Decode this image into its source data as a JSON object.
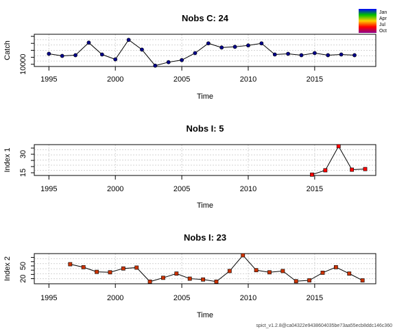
{
  "footer": "spict_v1.2.8@ca04322e9438604035be73aa55ecb8ddc146c360",
  "legend": {
    "labels": [
      "Jan",
      "Apr",
      "Jul",
      "Oct"
    ],
    "colors": [
      "#0000ff",
      "#00c000",
      "#ffd000",
      "#ff0000",
      "#8b008b"
    ]
  },
  "chart_data": [
    {
      "type": "line",
      "title": "Nobs C: 24",
      "xlabel": "Time",
      "ylabel": "Catch",
      "xlim": [
        1993.9,
        2019.6
      ],
      "ylim": [
        8400,
        31500
      ],
      "xticks": [
        "1995",
        "2000",
        "2005",
        "2010",
        "2015"
      ],
      "yticks": [
        "10000"
      ],
      "grid": true,
      "point_color": "#00008b",
      "series": [
        {
          "x": [
            1995.0,
            1996.0,
            1997.0,
            1998.0,
            1999.0,
            2000.0,
            2001.0,
            2002.0,
            2003.0,
            2004.0,
            2005.0,
            2006.0,
            2007.0,
            2008.0,
            2009.0,
            2010.0,
            2011.0,
            2012.0,
            2013.0,
            2014.0,
            2015.0,
            2016.0,
            2017.0,
            2018.0
          ],
          "y": [
            17500,
            16000,
            16500,
            25500,
            17000,
            13500,
            27500,
            20500,
            9000,
            11500,
            13000,
            18000,
            25000,
            22000,
            22500,
            23500,
            25000,
            17000,
            17500,
            16500,
            18000,
            16500,
            17000,
            16500
          ]
        }
      ]
    },
    {
      "type": "line",
      "title": "Nobs I: 5",
      "xlabel": "Time",
      "ylabel": "Index 1",
      "xlim": [
        1993.9,
        2019.6
      ],
      "ylim": [
        12.8,
        37.8
      ],
      "xticks": [
        "1995",
        "2000",
        "2005",
        "2010",
        "2015"
      ],
      "yticks": [
        "15",
        "30"
      ],
      "grid": true,
      "point_color": "#ff0000",
      "series": [
        {
          "x": [
            2014.8,
            2015.8,
            2016.8,
            2017.8,
            2018.8
          ],
          "y": [
            13.5,
            17.0,
            36.5,
            17.5,
            18.0
          ]
        }
      ]
    },
    {
      "type": "line",
      "title": "Nobs I: 23",
      "xlabel": "Time",
      "ylabel": "Index 2",
      "xlim": [
        1993.9,
        2019.6
      ],
      "ylim": [
        8,
        79
      ],
      "xticks": [
        "1995",
        "2000",
        "2005",
        "2010",
        "2015"
      ],
      "yticks": [
        "20",
        "50"
      ],
      "grid": true,
      "point_color": "#cc3300",
      "series": [
        {
          "x": [
            1996.6,
            1997.6,
            1998.6,
            1999.6,
            2000.6,
            2001.6,
            2002.6,
            2003.6,
            2004.6,
            2005.6,
            2006.6,
            2007.6,
            2008.6,
            2009.6,
            2010.6,
            2011.6,
            2012.6,
            2013.6,
            2014.6,
            2015.6,
            2016.6,
            2017.6,
            2018.6
          ],
          "y": [
            54,
            47,
            36,
            35,
            44,
            46,
            13,
            22,
            32,
            20,
            18,
            13,
            38,
            75,
            40,
            35,
            38,
            14,
            16,
            34,
            47,
            32,
            16
          ]
        }
      ]
    }
  ]
}
